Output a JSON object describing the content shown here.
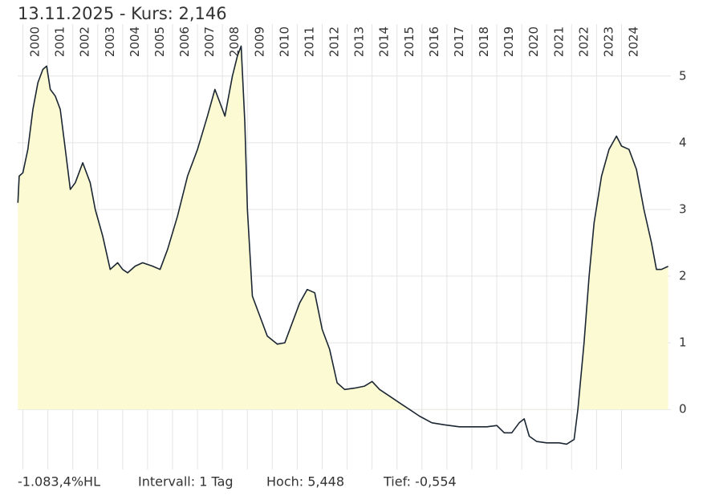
{
  "chart_data": {
    "type": "area",
    "title": "13.11.2025  -  Kurs: 2,146",
    "footer": [
      "-1.083,4%HL",
      "Intervall: 1 Tag",
      "Hoch:  5,448",
      "Tief:  -0,554"
    ],
    "x": [
      1999.8,
      1999.85,
      2000.0,
      2000.2,
      2000.4,
      2000.6,
      2000.8,
      2000.95,
      2001.1,
      2001.3,
      2001.5,
      2001.7,
      2001.9,
      2002.1,
      2002.4,
      2002.7,
      2002.9,
      2003.2,
      2003.5,
      2003.8,
      2004.0,
      2004.2,
      2004.5,
      2004.8,
      2005.2,
      2005.5,
      2005.8,
      2006.2,
      2006.6,
      2007.0,
      2007.4,
      2007.7,
      2007.9,
      2008.1,
      2008.4,
      2008.6,
      2008.75,
      2008.9,
      2009.0,
      2009.2,
      2009.5,
      2009.8,
      2010.2,
      2010.5,
      2010.8,
      2011.1,
      2011.4,
      2011.7,
      2012.0,
      2012.3,
      2012.6,
      2012.9,
      2013.3,
      2013.7,
      2014.0,
      2014.3,
      2014.7,
      2015.1,
      2015.5,
      2015.9,
      2016.4,
      2016.9,
      2017.5,
      2018.0,
      2018.6,
      2019.0,
      2019.3,
      2019.6,
      2019.9,
      2020.1,
      2020.3,
      2020.6,
      2021.0,
      2021.5,
      2021.8,
      2022.1,
      2022.25,
      2022.5,
      2022.7,
      2022.9,
      2023.2,
      2023.5,
      2023.8,
      2024.0,
      2024.3,
      2024.6,
      2024.9,
      2025.2,
      2025.4,
      2025.6,
      2025.87
    ],
    "values": [
      3.1,
      3.5,
      3.55,
      3.9,
      4.5,
      4.9,
      5.1,
      5.15,
      4.8,
      4.7,
      4.5,
      3.9,
      3.3,
      3.4,
      3.7,
      3.4,
      3.0,
      2.6,
      2.1,
      2.2,
      2.1,
      2.05,
      2.15,
      2.2,
      2.15,
      2.1,
      2.4,
      2.9,
      3.5,
      3.9,
      4.4,
      4.8,
      4.6,
      4.4,
      5.0,
      5.3,
      5.45,
      4.3,
      3.0,
      1.7,
      1.4,
      1.1,
      0.98,
      1.0,
      1.3,
      1.6,
      1.8,
      1.75,
      1.2,
      0.9,
      0.4,
      0.3,
      0.32,
      0.35,
      0.42,
      0.3,
      0.2,
      0.1,
      0.0,
      -0.1,
      -0.2,
      -0.23,
      -0.26,
      -0.26,
      -0.26,
      -0.24,
      -0.35,
      -0.35,
      -0.2,
      -0.14,
      -0.4,
      -0.48,
      -0.5,
      -0.5,
      -0.52,
      -0.45,
      0.0,
      1.0,
      2.0,
      2.8,
      3.5,
      3.9,
      4.1,
      3.95,
      3.9,
      3.6,
      3.0,
      2.5,
      2.1,
      2.1,
      2.146
    ],
    "color": "#1b2633",
    "fill_color": "#fcfad2",
    "xlim": [
      1999.79,
      2025.98
    ],
    "ylim": [
      -0.9,
      5.78
    ],
    "xticks": [
      2000,
      2001,
      2002,
      2003,
      2004,
      2005,
      2006,
      2007,
      2008,
      2009,
      2010,
      2011,
      2012,
      2013,
      2014,
      2015,
      2016,
      2017,
      2018,
      2019,
      2020,
      2021,
      2022,
      2023,
      2024
    ],
    "yticks": [
      0,
      1,
      2,
      3,
      4,
      5
    ],
    "grid": true
  }
}
